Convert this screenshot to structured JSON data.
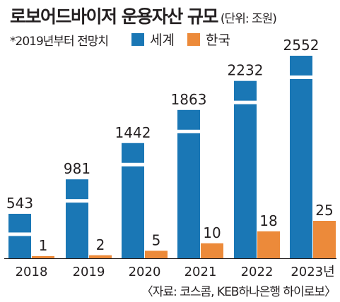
{
  "title": "로보어드바이저 운용자산 규모",
  "unit": "(단위: 조원)",
  "note": "*2019년부터 전망치",
  "source": "〈자료: 코스콤, KEB하나은행 하이로보〉",
  "colors": {
    "world": "#1a77b5",
    "korea": "#ec8a3a"
  },
  "chart_data": {
    "type": "bar",
    "categories": [
      "2018",
      "2019",
      "2020",
      "2021",
      "2022",
      "2023년"
    ],
    "series": [
      {
        "name": "세계",
        "values": [
          543,
          981,
          1442,
          1863,
          2232,
          2552
        ]
      },
      {
        "name": "한국",
        "values": [
          1,
          2,
          5,
          10,
          18,
          25
        ]
      }
    ],
    "axis_break": true,
    "grid": false,
    "legend": "top"
  }
}
